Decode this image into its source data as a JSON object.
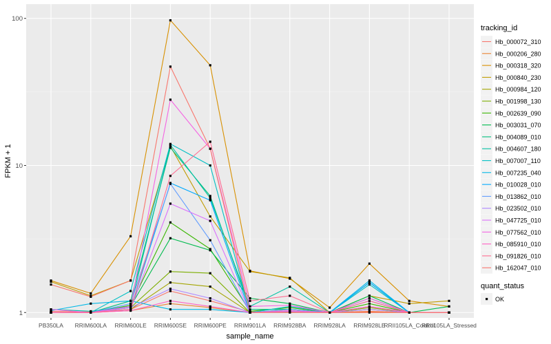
{
  "chart_data": {
    "type": "line",
    "xlabel": "sample_name",
    "ylabel": "FPKM + 1",
    "y_scale": "log10",
    "ylim": [
      0.92,
      125
    ],
    "y_ticks": [
      1,
      10,
      100
    ],
    "y_tick_labels": [
      "1",
      "10",
      "100"
    ],
    "grid": true,
    "categories": [
      "PB350LA",
      "RRIM600LA",
      "RRIM600LE",
      "RRIM600SE",
      "RRIM600PE",
      "RRIM901LA",
      "RRIM928BA",
      "RRIM928LA",
      "RRIM928LE",
      "RRII105LA_Control",
      "RRII105LA_Stressed"
    ],
    "legend": {
      "title": "tracking_id",
      "position": "right"
    },
    "legend2": {
      "title": "quant_status",
      "entries": [
        "OK"
      ]
    },
    "series": [
      {
        "name": "Hb_000072_310",
        "color": "#F8766D",
        "values": [
          1.02,
          1.01,
          1.05,
          1.4,
          1.2,
          1.01,
          1.02,
          1.0,
          1.02,
          1.0,
          1.0
        ]
      },
      {
        "name": "Hb_000206_280",
        "color": "#EA8331",
        "values": [
          1.0,
          1.0,
          1.03,
          1.15,
          1.08,
          1.0,
          1.01,
          1.0,
          1.01,
          1.0,
          1.0
        ]
      },
      {
        "name": "Hb_000318_320",
        "color": "#D89000",
        "values": [
          1.65,
          1.35,
          3.3,
          97.0,
          48.0,
          1.92,
          1.7,
          1.08,
          2.15,
          1.2,
          1.1
        ]
      },
      {
        "name": "Hb_000840_230",
        "color": "#C09B00",
        "values": [
          1.62,
          1.3,
          1.65,
          13.5,
          4.5,
          1.9,
          1.72,
          1.0,
          1.3,
          1.15,
          1.2
        ]
      },
      {
        "name": "Hb_000984_120",
        "color": "#A3A500",
        "values": [
          1.0,
          1.0,
          1.05,
          1.6,
          1.5,
          1.0,
          1.02,
          1.0,
          1.05,
          1.0,
          1.0
        ]
      },
      {
        "name": "Hb_001998_130",
        "color": "#7CAE00",
        "values": [
          1.0,
          1.0,
          1.08,
          1.9,
          1.85,
          1.0,
          1.05,
          1.0,
          1.08,
          1.0,
          1.0
        ]
      },
      {
        "name": "Hb_002639_090",
        "color": "#39B600",
        "values": [
          1.0,
          1.0,
          1.12,
          4.1,
          2.7,
          1.02,
          1.08,
          1.0,
          1.15,
          1.0,
          1.0
        ]
      },
      {
        "name": "Hb_003031_070",
        "color": "#00BB4E",
        "values": [
          1.0,
          1.0,
          1.1,
          3.2,
          2.65,
          1.25,
          1.15,
          1.0,
          1.3,
          1.0,
          1.1
        ]
      },
      {
        "name": "Hb_004089_010",
        "color": "#00BF7D",
        "values": [
          1.0,
          1.0,
          1.2,
          13.2,
          6.2,
          1.05,
          1.05,
          1.0,
          1.25,
          1.0,
          1.0
        ]
      },
      {
        "name": "Hb_004607_180",
        "color": "#00C1A3",
        "values": [
          1.05,
          1.02,
          1.1,
          13.8,
          6.0,
          1.1,
          1.5,
          1.0,
          1.6,
          1.0,
          1.0
        ]
      },
      {
        "name": "Hb_007007_110",
        "color": "#00BFC4",
        "values": [
          1.0,
          1.0,
          1.4,
          14.0,
          10.0,
          1.0,
          1.1,
          1.0,
          1.55,
          1.0,
          1.0
        ]
      },
      {
        "name": "Hb_007235_040",
        "color": "#00B8E7",
        "values": [
          1.03,
          1.15,
          1.2,
          1.05,
          1.05,
          1.0,
          1.02,
          1.0,
          1.65,
          1.0,
          1.0
        ]
      },
      {
        "name": "Hb_010028_010",
        "color": "#00A9FF",
        "values": [
          1.0,
          1.0,
          1.05,
          7.6,
          5.8,
          1.0,
          1.02,
          1.0,
          1.6,
          1.0,
          1.0
        ]
      },
      {
        "name": "Hb_013862_010",
        "color": "#619CFF",
        "values": [
          1.0,
          1.0,
          1.15,
          7.5,
          3.1,
          1.0,
          1.05,
          1.0,
          1.2,
          1.0,
          1.0
        ]
      },
      {
        "name": "Hb_023502_010",
        "color": "#AE87FF",
        "values": [
          1.0,
          1.0,
          1.08,
          1.45,
          1.25,
          1.0,
          1.02,
          1.0,
          1.05,
          1.0,
          1.0
        ]
      },
      {
        "name": "Hb_047725_010",
        "color": "#DB72FB",
        "values": [
          1.0,
          1.0,
          1.05,
          5.5,
          4.2,
          1.0,
          1.02,
          1.0,
          1.1,
          1.0,
          1.0
        ]
      },
      {
        "name": "Hb_077562_010",
        "color": "#F564E3",
        "values": [
          1.05,
          1.0,
          1.1,
          28.0,
          13.0,
          1.1,
          1.12,
          1.0,
          1.25,
          1.0,
          1.0
        ]
      },
      {
        "name": "Hb_085910_010",
        "color": "#FF61C3",
        "values": [
          1.0,
          1.0,
          1.03,
          1.2,
          1.1,
          1.0,
          1.03,
          1.0,
          1.1,
          1.0,
          1.0
        ]
      },
      {
        "name": "Hb_091826_010",
        "color": "#FF6C91",
        "values": [
          1.0,
          1.0,
          1.05,
          8.5,
          14.5,
          1.2,
          1.3,
          1.0,
          1.2,
          1.0,
          1.0
        ]
      },
      {
        "name": "Hb_162047_010",
        "color": "#F8766D",
        "values": [
          1.55,
          1.28,
          1.65,
          47.0,
          13.0,
          1.0,
          1.0,
          1.0,
          1.0,
          1.0,
          1.0
        ]
      }
    ]
  }
}
